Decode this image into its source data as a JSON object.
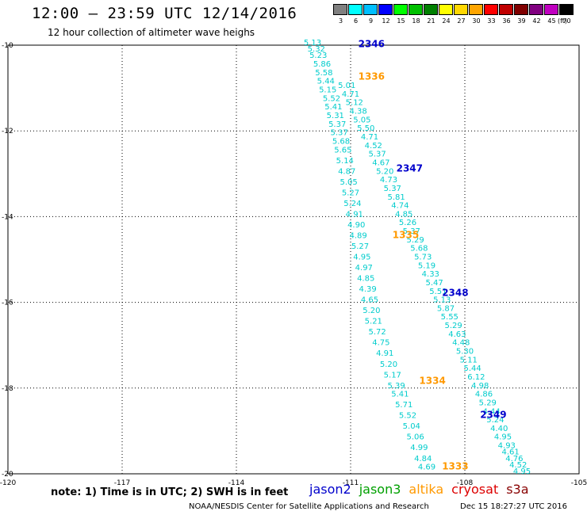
{
  "title": "12:00 – 23:59 UTC 12/14/2016",
  "subtitle": "12 hour collection of altimeter wave heighs",
  "colorbar": {
    "labels": [
      "3",
      "6",
      "9",
      "12",
      "15",
      "18",
      "21",
      "24",
      "27",
      "30",
      "33",
      "36",
      "39",
      "42",
      "45",
      "70"
    ],
    "unit": "(ft)",
    "colors": [
      "#808080",
      "#00ffff",
      "#00bfff",
      "#0000ff",
      "#00ff00",
      "#00c000",
      "#008000",
      "#ffff00",
      "#ffd700",
      "#ffa500",
      "#ff0000",
      "#c00000",
      "#800000",
      "#800080",
      "#c000c0",
      "#000000"
    ]
  },
  "axes": {
    "x_ticks": [
      "-120",
      "-117",
      "-114",
      "-111",
      "-108",
      "-105"
    ],
    "y_ticks": [
      "-10",
      "-12",
      "-14",
      "-16",
      "-18",
      "-20"
    ],
    "x_range": [
      -120,
      -105
    ],
    "y_range": [
      -20,
      -10
    ]
  },
  "note": "note: 1) Time is in UTC; 2) SWH is in feet",
  "legend": [
    {
      "name": "jason2",
      "color": "#0000cc"
    },
    {
      "name": "jason3",
      "color": "#00a000"
    },
    {
      "name": "altika",
      "color": "#ff9900"
    },
    {
      "name": "cryosat",
      "color": "#dd0000"
    },
    {
      "name": "s3a",
      "color": "#880000"
    }
  ],
  "footer_left": "NOAA/NESDIS Center for Satellite Applications and Research",
  "footer_right": "Dec 15 18:27:27 UTC 2016",
  "chart_data": {
    "type": "scatter",
    "title": "12:00 – 23:59 UTC 12/14/2016",
    "xlim": [
      -120,
      -105
    ],
    "ylim": [
      -20,
      -10
    ],
    "grid": true,
    "time_labels": [
      {
        "text": "2346",
        "satellite": "jason2",
        "lon": -110.8,
        "lat": -10.05
      },
      {
        "text": "1336",
        "satellite": "altika",
        "lon": -110.8,
        "lat": -10.8
      },
      {
        "text": "2347",
        "satellite": "jason2",
        "lon": -109.8,
        "lat": -12.95
      },
      {
        "text": "1335",
        "satellite": "altika",
        "lon": -109.9,
        "lat": -14.5
      },
      {
        "text": "2348",
        "satellite": "jason2",
        "lon": -108.6,
        "lat": -15.85
      },
      {
        "text": "1334",
        "satellite": "altika",
        "lon": -109.2,
        "lat": -17.9
      },
      {
        "text": "2349",
        "satellite": "jason2",
        "lon": -107.6,
        "lat": -18.7
      },
      {
        "text": "1333",
        "satellite": "altika",
        "lon": -108.6,
        "lat": -19.9
      }
    ],
    "series": [
      {
        "name": "altika",
        "color": "#00cccc",
        "lon": [
          -112.0,
          -111.9,
          -111.85,
          -111.75,
          -111.7,
          -111.65,
          -111.6,
          -111.5,
          -111.45,
          -111.4,
          -111.35,
          -111.3,
          -111.25,
          -111.2,
          -111.15,
          -111.1,
          -111.05,
          -111.0,
          -110.95,
          -110.9,
          -110.85,
          -110.8,
          -110.75,
          -110.7,
          -110.65,
          -110.6,
          -110.55,
          -110.5,
          -110.45,
          -110.4,
          -110.3,
          -110.2,
          -110.1,
          -110.0,
          -109.9,
          -109.8,
          -109.7,
          -109.6,
          -109.5,
          -109.4,
          -109.3,
          -109.2,
          -109.1,
          -109.0
        ],
        "lat": [
          -10.0,
          -10.15,
          -10.3,
          -10.5,
          -10.7,
          -10.9,
          -11.1,
          -11.3,
          -11.5,
          -11.7,
          -11.9,
          -12.1,
          -12.3,
          -12.5,
          -12.75,
          -13.0,
          -13.25,
          -13.5,
          -13.75,
          -14.0,
          -14.25,
          -14.5,
          -14.75,
          -15.0,
          -15.25,
          -15.5,
          -15.75,
          -16.0,
          -16.25,
          -16.5,
          -16.75,
          -17.0,
          -17.25,
          -17.5,
          -17.75,
          -18.0,
          -18.2,
          -18.45,
          -18.7,
          -18.95,
          -19.2,
          -19.45,
          -19.7,
          -19.9
        ],
        "values": [
          5.13,
          5.32,
          5.23,
          5.86,
          5.58,
          5.44,
          5.15,
          5.52,
          5.41,
          5.31,
          5.37,
          5.37,
          5.68,
          5.65,
          5.14,
          4.87,
          5.05,
          5.27,
          5.24,
          4.91,
          4.9,
          4.89,
          5.27,
          4.95,
          4.97,
          4.85,
          4.39,
          4.65,
          5.2,
          5.21,
          5.72,
          4.75,
          4.91,
          5.2,
          5.17,
          5.39,
          5.41,
          5.71,
          5.52,
          5.04,
          5.06,
          4.99,
          4.84,
          4.69
        ]
      },
      {
        "name": "jason2",
        "color": "#00cccc",
        "lon": [
          -111.1,
          -111.0,
          -110.9,
          -110.8,
          -110.7,
          -110.6,
          -110.5,
          -110.4,
          -110.3,
          -110.2,
          -110.1,
          -110.0,
          -109.9,
          -109.8,
          -109.7,
          -109.6,
          -109.5,
          -109.4,
          -109.3,
          -109.2,
          -109.1,
          -109.0,
          -108.9,
          -108.8,
          -108.7,
          -108.6,
          -108.5,
          -108.4,
          -108.3,
          -108.2,
          -108.1,
          -108.0,
          -107.9,
          -107.8,
          -107.7,
          -107.6,
          -107.5,
          -107.4,
          -107.3,
          -107.2,
          -107.1,
          -107.0,
          -106.9
        ],
        "lat": [
          -11.0,
          -11.2,
          -11.4,
          -11.6,
          -11.8,
          -12.0,
          -12.2,
          -12.4,
          -12.6,
          -12.8,
          -13.0,
          -13.2,
          -13.4,
          -13.6,
          -13.8,
          -14.0,
          -14.2,
          -14.4,
          -14.6,
          -14.8,
          -15.0,
          -15.2,
          -15.4,
          -15.6,
          -15.8,
          -16.0,
          -16.2,
          -16.4,
          -16.6,
          -16.8,
          -17.0,
          -17.2,
          -17.4,
          -17.6,
          -17.8,
          -18.0,
          -18.2,
          -18.4,
          -18.6,
          -18.8,
          -19.0,
          -19.2,
          -19.4
        ],
        "values": [
          5.01,
          4.71,
          5.12,
          4.38,
          5.05,
          5.5,
          4.71,
          4.52,
          5.37,
          4.67,
          5.2,
          4.73,
          5.37,
          5.81,
          4.74,
          4.85,
          5.26,
          5.37,
          5.29,
          5.68,
          5.73,
          5.19,
          4.33,
          5.47,
          5.51,
          5.13,
          5.87,
          5.55,
          5.29,
          4.63,
          4.48,
          5.3,
          5.11,
          5.44,
          6.12,
          4.98,
          4.86,
          5.29,
          4.44,
          5.24,
          4.4,
          4.95,
          4.93
        ]
      },
      {
        "name": "jason2-tail",
        "color": "#00cccc",
        "lon": [
          -106.8,
          -106.7,
          -106.6,
          -106.5
        ],
        "lat": [
          -19.55,
          -19.7,
          -19.85,
          -20.0
        ],
        "values": [
          4.61,
          4.76,
          4.52,
          4.95
        ]
      }
    ]
  }
}
